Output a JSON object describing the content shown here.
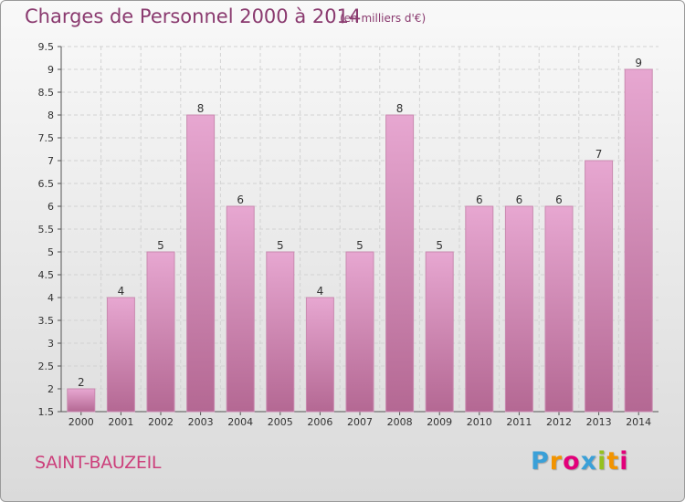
{
  "header": {
    "title": "Charges de Personnel 2000 à 2014",
    "subtitle": "(en milliers d'€)"
  },
  "footer": {
    "town": "SAINT-BAUZEIL",
    "logo": "Proxiti",
    "logo_colors": [
      "#3aa0d8",
      "#f29400",
      "#e2007a",
      "#3aa0d8",
      "#95c11f",
      "#f29400",
      "#e2007a"
    ]
  },
  "colors": {
    "bar_top": "#e7a7d1",
    "bar_bottom": "#b46893",
    "bar_stroke": "#c98ab0",
    "title": "#8a3a6f",
    "town": "#cc3f7b"
  },
  "chart_data": {
    "type": "bar",
    "title": "Charges de Personnel 2000 à 2014",
    "subtitle": "(en milliers d'€)",
    "categories": [
      "2000",
      "2001",
      "2002",
      "2003",
      "2004",
      "2005",
      "2006",
      "2007",
      "2008",
      "2009",
      "2010",
      "2011",
      "2012",
      "2013",
      "2014"
    ],
    "values": [
      2,
      4,
      5,
      8,
      6,
      5,
      4,
      5,
      8,
      5,
      6,
      6,
      6,
      7,
      9
    ],
    "value_labels": [
      "2",
      "4",
      "5",
      "8",
      "6",
      "5",
      "4",
      "5",
      "8",
      "5",
      "6",
      "6",
      "6",
      "7",
      "9"
    ],
    "y_ticks": [
      "1.5",
      "2",
      "2.5",
      "3",
      "3.5",
      "4",
      "4.5",
      "5",
      "5.5",
      "6",
      "6.5",
      "7",
      "7.5",
      "8",
      "8.5",
      "9",
      "9.5"
    ],
    "ylim": [
      1.5,
      9.5
    ],
    "grid": true,
    "xlabel": "",
    "ylabel": ""
  }
}
